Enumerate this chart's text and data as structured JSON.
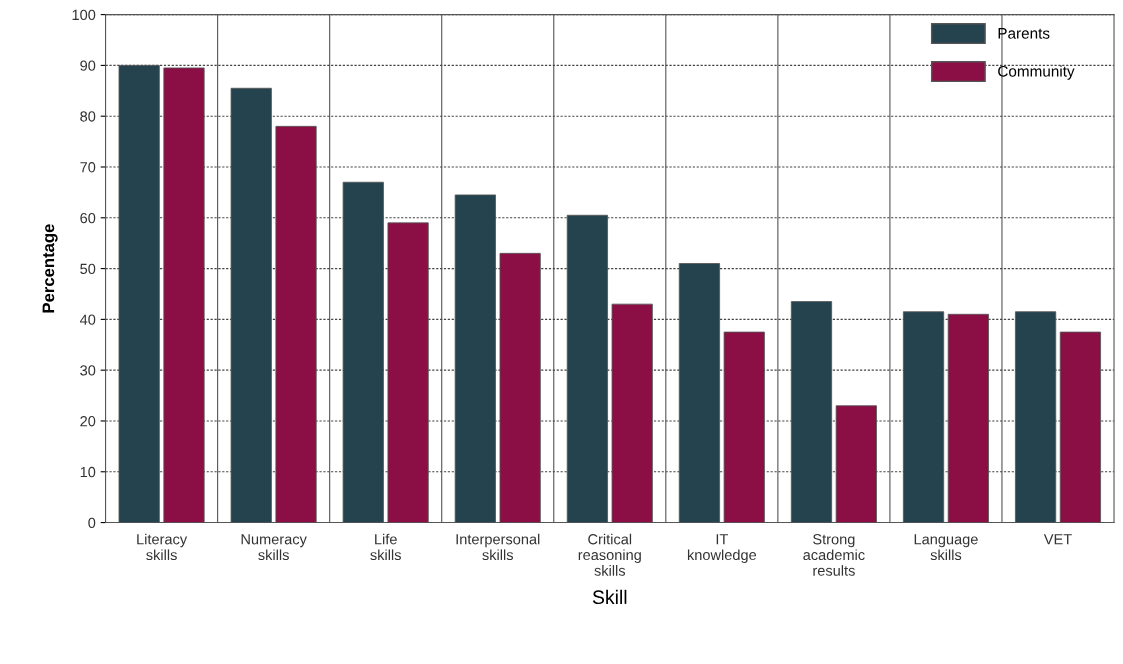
{
  "chart_data": {
    "type": "bar",
    "xlabel": "Skill",
    "ylabel": "Percentage",
    "categories": [
      "Literacy\nskills",
      "Numeracy\nskills",
      "Life\nskills",
      "Interpersonal\nskills",
      "Critical\nreasoning\nskills",
      "IT\nknowledge",
      "Strong\nacademic\nresults",
      "Language\nskills",
      "VET"
    ],
    "series": [
      {
        "name": "Parents",
        "color": "#24434f",
        "values": [
          90,
          85.5,
          67,
          64.5,
          60.5,
          51,
          43.5,
          41.5,
          41.5
        ]
      },
      {
        "name": "Community",
        "color": "#8b0f45",
        "values": [
          89.5,
          78,
          59,
          53,
          43,
          37.5,
          23,
          41,
          37.5
        ]
      }
    ],
    "ylim": [
      0,
      100
    ],
    "yticks": [
      0,
      10,
      20,
      30,
      40,
      50,
      60,
      70,
      80,
      90,
      100
    ],
    "grid": "y",
    "legend": "top right"
  }
}
